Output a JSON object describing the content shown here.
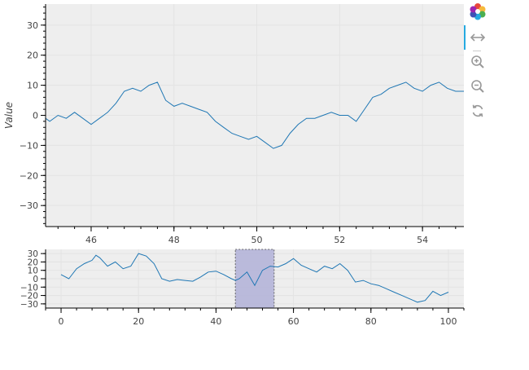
{
  "colors": {
    "line": "#1f77b4",
    "plot_bg": "#eeeeee",
    "grid": "#e3e3e3",
    "selection_fill": "#b4b4d8",
    "selection_border": "#666666"
  },
  "toolbar": {
    "tools": [
      {
        "name": "bokeh-logo-icon"
      },
      {
        "name": "range-tool-icon",
        "active": true
      },
      {
        "name": "wheel-zoom-in-icon"
      },
      {
        "name": "zoom-out-icon"
      },
      {
        "name": "reset-icon"
      }
    ]
  },
  "chart_data": [
    {
      "type": "line",
      "title": "",
      "xlabel": "",
      "ylabel": "Value",
      "xlim": [
        44.9,
        55.0
      ],
      "ylim": [
        -37,
        37
      ],
      "xticks": [
        "46",
        "48",
        "50",
        "52",
        "54"
      ],
      "yticks": [
        "30",
        "20",
        "10",
        "0",
        "−10",
        "−20",
        "−30"
      ],
      "grid": true,
      "legend": "none",
      "series": [
        {
          "x": [
            44.9,
            45.0,
            45.2,
            45.4,
            45.6,
            45.8,
            46.0,
            46.2,
            46.4,
            46.6,
            46.8,
            47.0,
            47.2,
            47.4,
            47.6,
            47.8,
            48.0,
            48.2,
            48.4,
            48.6,
            48.8,
            49.0,
            49.2,
            49.4,
            49.6,
            49.8,
            50.0,
            50.2,
            50.4,
            50.6,
            50.8,
            51.0,
            51.2,
            51.4,
            51.6,
            51.8,
            52.0,
            52.2,
            52.4,
            52.6,
            52.8,
            53.0,
            53.2,
            53.4,
            53.6,
            53.8,
            54.0,
            54.2,
            54.4,
            54.6,
            54.8,
            55.0
          ],
          "y": [
            -1,
            -2,
            0,
            -1,
            1,
            -1,
            -3,
            -1,
            1,
            4,
            8,
            9,
            8,
            10,
            11,
            5,
            3,
            4,
            3,
            2,
            1,
            -2,
            -4,
            -6,
            -7,
            -8,
            -7,
            -9,
            -11,
            -10,
            -6,
            -3,
            -1,
            -1,
            0,
            1,
            0,
            0,
            -2,
            2,
            6,
            7,
            9,
            10,
            11,
            9,
            8,
            10,
            11,
            9,
            8,
            8
          ]
        }
      ]
    },
    {
      "type": "line",
      "title": "",
      "xlabel": "",
      "ylabel": "",
      "xlim": [
        -4,
        104
      ],
      "ylim": [
        -35,
        35
      ],
      "xticks": [
        "0",
        "20",
        "40",
        "60",
        "80",
        "100"
      ],
      "yticks": [
        "30",
        "20",
        "10",
        "0",
        "−10",
        "−20",
        "−30"
      ],
      "grid": true,
      "legend": "none",
      "selection": [
        45,
        55
      ],
      "series": [
        {
          "x": [
            0,
            2,
            4,
            6,
            8,
            9,
            10,
            12,
            14,
            16,
            18,
            20,
            22,
            24,
            26,
            28,
            30,
            32,
            34,
            36,
            38,
            40,
            42,
            44,
            45,
            46,
            48,
            50,
            52,
            54,
            56,
            58,
            60,
            62,
            64,
            66,
            68,
            70,
            72,
            74,
            76,
            78,
            80,
            82,
            84,
            86,
            88,
            90,
            92,
            94,
            96,
            98,
            100
          ],
          "y": [
            5,
            0,
            12,
            18,
            22,
            28,
            25,
            15,
            20,
            12,
            15,
            30,
            27,
            18,
            0,
            -3,
            -1,
            -2,
            -3,
            2,
            8,
            9,
            5,
            0,
            -2,
            0,
            8,
            -8,
            10,
            15,
            14,
            18,
            24,
            16,
            12,
            8,
            15,
            12,
            18,
            10,
            -4,
            -2,
            -6,
            -8,
            -12,
            -16,
            -20,
            -24,
            -28,
            -26,
            -15,
            -20,
            -16
          ]
        }
      ]
    }
  ]
}
